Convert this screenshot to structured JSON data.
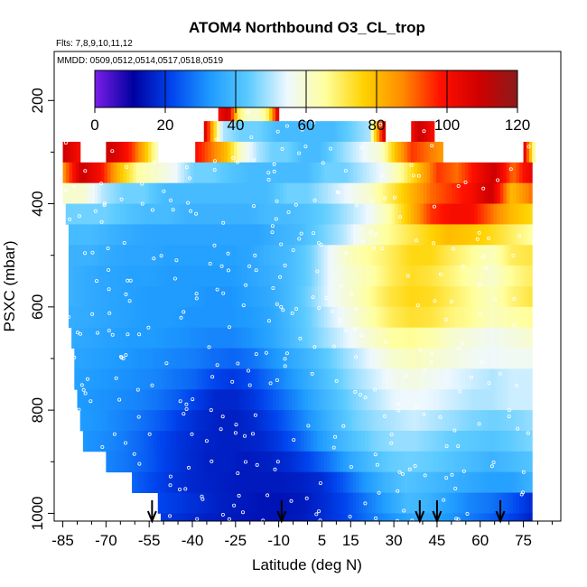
{
  "chart_data": {
    "type": "heatmap",
    "title": "ATOM4 Northbound O3_CL_trop",
    "subtitle_flights": "Flts: 7,8,9,10,11,12",
    "subtitle_dates": "MMDD: 0509,0512,0514,0517,0518,0519",
    "xlabel": "Latitude (deg N)",
    "ylabel": "PSXC (mbar)",
    "xlim": [
      -88,
      88
    ],
    "ylim": [
      1015,
      105
    ],
    "x_ticks": [
      "-85",
      "-70",
      "-55",
      "-40",
      "-25",
      "-10",
      "5",
      "15",
      "30",
      "45",
      "60",
      "75"
    ],
    "x_tick_values": [
      -85,
      -70,
      -55,
      -40,
      -25,
      -10,
      5,
      15,
      30,
      45,
      60,
      75
    ],
    "y_ticks": [
      "200",
      "400",
      "600",
      "800",
      "1000"
    ],
    "y_tick_values": [
      200,
      400,
      600,
      800,
      1000
    ],
    "colorbar": {
      "min": 0,
      "max": 120,
      "ticks": [
        "0",
        "20",
        "40",
        "60",
        "80",
        "100",
        "120"
      ],
      "tick_values": [
        0,
        20,
        40,
        60,
        80,
        100,
        120
      ],
      "colors": [
        "#7b1ee8",
        "#0000a0",
        "#0044ee",
        "#1e9bff",
        "#5ccbff",
        "#eef8ff",
        "#ffff9e",
        "#ffd200",
        "#ff8c00",
        "#ff1000",
        "#d00000",
        "#8b1a1a"
      ]
    },
    "arrow_latitudes": [
      -54,
      -9,
      39,
      45,
      67
    ],
    "pressure_bands": [
      {
        "p": [
          200,
          240
        ],
        "segments": [
          [
            -31,
            -10,
            [
              100,
              110,
              70,
              60,
              60,
              70,
              110
            ]
          ]
        ]
      },
      {
        "p": [
          240,
          280
        ],
        "segments": [
          [
            -36,
            22,
            [
              110,
              50,
              45,
              45,
              40,
              40,
              40,
              40,
              45,
              50
            ]
          ],
          [
            22,
            27,
            [
              60,
              85,
              110
            ]
          ],
          [
            36,
            44,
            [
              100,
              110,
              105,
              100
            ]
          ]
        ]
      },
      {
        "p": [
          280,
          320
        ],
        "segments": [
          [
            -85,
            -79,
            [
              110,
              100
            ]
          ],
          [
            -70,
            -52,
            [
              110,
              105,
              95,
              80,
              60
            ]
          ],
          [
            -39,
            47,
            [
              100,
              90,
              80,
              60,
              50,
              45,
              45,
              40,
              40,
              45,
              50,
              55,
              60,
              80,
              95,
              90,
              85
            ]
          ],
          [
            75,
            79,
            [
              110,
              60
            ]
          ]
        ]
      },
      {
        "p": [
          320,
          360
        ],
        "segments": [
          [
            -85,
            78,
            [
              85,
              110,
              100,
              80,
              65,
              60,
              55,
              45,
              45,
              42,
              40,
              40,
              40,
              40,
              45,
              45,
              50,
              55,
              65,
              80,
              95,
              90,
              100,
              110,
              90,
              105
            ]
          ]
        ]
      },
      {
        "p": [
          360,
          400
        ],
        "segments": [
          [
            -85,
            78,
            [
              60,
              60,
              50,
              45,
              45,
              40,
              40,
              40,
              40,
              40,
              40,
              45,
              45,
              50,
              55,
              60,
              70,
              80,
              90,
              95,
              100,
              110,
              80,
              90
            ]
          ]
        ]
      },
      {
        "p": [
          400,
          440
        ],
        "segments": [
          [
            -84,
            78,
            [
              45,
              45,
              45,
              42,
              40,
              40,
              38,
              38,
              38,
              38,
              40,
              40,
              42,
              45,
              50,
              55,
              65,
              80,
              95,
              100,
              100,
              90,
              80,
              75
            ]
          ]
        ]
      },
      {
        "p": [
          440,
          480
        ],
        "segments": [
          [
            -83,
            78,
            [
              40,
              40,
              38,
              36,
              35,
              35,
              35,
              35,
              35,
              35,
              38,
              40,
              45,
              50,
              58,
              65,
              70,
              75,
              80,
              78,
              75,
              70,
              65
            ]
          ]
        ]
      },
      {
        "p": [
          480,
          520
        ],
        "segments": [
          [
            -83,
            78,
            [
              38,
              38,
              36,
              35,
              35,
              34,
              34,
              34,
              34,
              35,
              38,
              40,
              45,
              55,
              62,
              66,
              70,
              75,
              75,
              70,
              66,
              62,
              70,
              72
            ]
          ]
        ]
      },
      {
        "p": [
          520,
          560
        ],
        "segments": [
          [
            -83,
            78,
            [
              38,
              36,
              35,
              34,
              34,
              33,
              33,
              33,
              33,
              35,
              37,
              40,
              45,
              55,
              60,
              64,
              70,
              74,
              72,
              68,
              64,
              60,
              66,
              70
            ]
          ]
        ]
      },
      {
        "p": [
          560,
          600
        ],
        "segments": [
          [
            -83,
            78,
            [
              38,
              36,
              35,
              34,
              33,
              33,
              33,
              32,
              32,
              34,
              36,
              40,
              46,
              55,
              60,
              66,
              72,
              75,
              74,
              70,
              66,
              62,
              68,
              72
            ]
          ]
        ]
      },
      {
        "p": [
          600,
          640
        ],
        "segments": [
          [
            -83,
            78,
            [
              37,
              36,
              35,
              34,
              33,
              33,
              32,
              32,
              32,
              33,
              35,
              40,
              45,
              52,
              58,
              64,
              70,
              73,
              72,
              68,
              66,
              62,
              64,
              66
            ]
          ]
        ]
      },
      {
        "p": [
          640,
          680
        ],
        "segments": [
          [
            -82,
            78,
            [
              36,
              35,
              34,
              33,
              33,
              32,
              31,
              30,
              30,
              32,
              35,
              40,
              45,
              50,
              55,
              60,
              65,
              66,
              64,
              60,
              58,
              56,
              58,
              60
            ]
          ]
        ]
      },
      {
        "p": [
          680,
          720
        ],
        "segments": [
          [
            -81,
            78,
            [
              35,
              34,
              33,
              32,
              31,
              30,
              29,
              27,
              26,
              28,
              32,
              36,
              40,
              45,
              50,
              55,
              60,
              62,
              60,
              58,
              56,
              55,
              56,
              56
            ]
          ]
        ]
      },
      {
        "p": [
          720,
          760
        ],
        "segments": [
          [
            -81,
            78,
            [
              34,
              33,
              32,
              31,
              30,
              28,
              26,
              22,
              20,
              23,
              28,
              33,
              38,
              43,
              48,
              52,
              56,
              58,
              56,
              54,
              52,
              50,
              52,
              52
            ]
          ]
        ]
      },
      {
        "p": [
          760,
          800
        ],
        "segments": [
          [
            -80,
            78,
            [
              33,
              32,
              31,
              30,
              28,
              25,
              21,
              17,
              17,
              20,
              25,
              30,
              36,
              41,
              46,
              50,
              54,
              55,
              54,
              52,
              50,
              50,
              52,
              52
            ]
          ]
        ]
      },
      {
        "p": [
          800,
          840
        ],
        "segments": [
          [
            -79,
            78,
            [
              33,
              32,
              30,
              28,
              25,
              21,
              18,
              16,
              16,
              18,
              22,
              28,
              34,
              40,
              45,
              48,
              50,
              52,
              50,
              48,
              46,
              45,
              46,
              48
            ]
          ]
        ]
      },
      {
        "p": [
          840,
          880
        ],
        "segments": [
          [
            -78,
            78,
            [
              32,
              31,
              29,
              26,
              22,
              19,
              17,
              16,
              16,
              17,
              20,
              25,
              32,
              38,
              42,
              46,
              48,
              48,
              46,
              44,
              43,
              42,
              44,
              46
            ]
          ]
        ]
      },
      {
        "p": [
          880,
          920
        ],
        "segments": [
          [
            -70,
            78,
            [
              30,
              28,
              25,
              21,
              18,
              16,
              16,
              15,
              16,
              18,
              22,
              28,
              35,
              40,
              44,
              45,
              44,
              42,
              40,
              38,
              40,
              42
            ]
          ]
        ]
      },
      {
        "p": [
          920,
          960
        ],
        "segments": [
          [
            -61,
            78,
            [
              26,
              22,
              19,
              17,
              16,
              15,
              15,
              15,
              16,
              18,
              24,
              32,
              38,
              42,
              40,
              38,
              36,
              34,
              34,
              38
            ]
          ]
        ]
      },
      {
        "p": [
          960,
          1000
        ],
        "segments": [
          [
            -52,
            78,
            [
              22,
              20,
              18,
              16,
              15,
              14,
              14,
              15,
              18,
              22,
              28,
              34,
              40,
              38,
              34,
              30,
              28,
              24,
              18
            ]
          ]
        ]
      },
      {
        "p": [
          1000,
          1015
        ],
        "segments": [
          [
            -51,
            78,
            [
              20,
              18,
              16,
              15,
              14,
              14,
              15,
              18,
              22,
              28,
              32,
              36,
              34,
              30,
              26,
              22,
              16
            ]
          ]
        ]
      }
    ]
  }
}
